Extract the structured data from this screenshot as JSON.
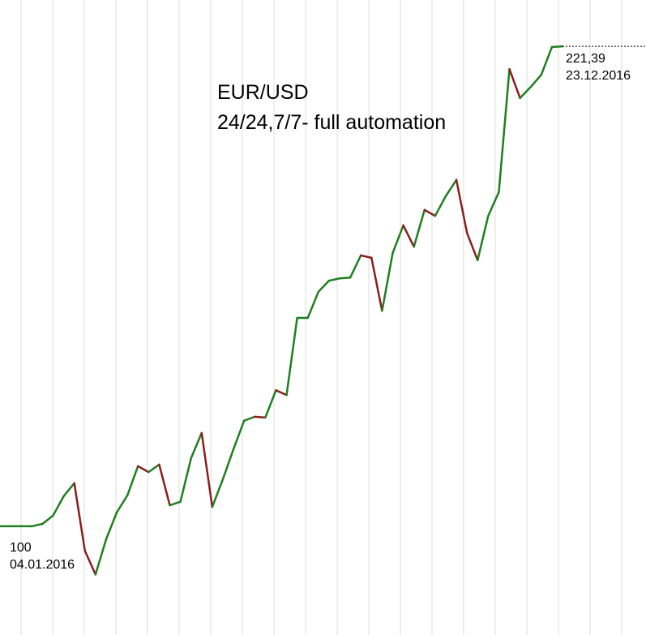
{
  "chart_data": {
    "type": "line",
    "title": "EUR/USD",
    "subtitle": "24/24,7/7- full automation",
    "values": [
      100,
      100,
      100,
      100,
      100.6,
      102.7,
      107.6,
      110.9,
      93.8,
      87.8,
      96.7,
      103.5,
      107.8,
      115.2,
      113.7,
      115.6,
      105.3,
      106.2,
      117.2,
      123.6,
      104.9,
      111.9,
      119.5,
      126.7,
      127.7,
      127.5,
      134.4,
      133.2,
      152.7,
      152.7,
      159.3,
      162.1,
      162.7,
      162.9,
      168.5,
      167.9,
      154.5,
      169.1,
      176.1,
      170.7,
      180.0,
      178.5,
      183.5,
      187.6,
      174.2,
      167.3,
      178.5,
      184.5,
      215.6,
      208.3,
      211.1,
      214.2,
      221.2,
      221.39
    ],
    "start_value_label": "100",
    "start_date": "04.01.2016",
    "end_value_label": "221,39",
    "end_date": "23.12.2016",
    "ylim": [
      72.5,
      233.1
    ],
    "up_color": "#1f7f1f",
    "down_color": "#8b1e1e",
    "grid": true
  }
}
